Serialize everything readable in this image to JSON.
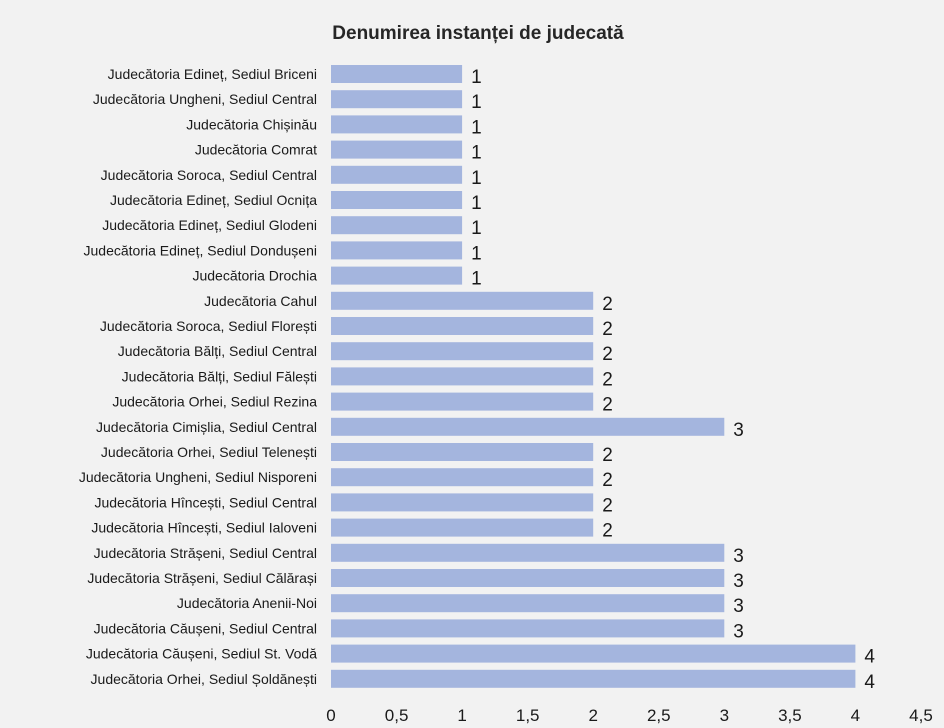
{
  "chart_data": {
    "type": "bar",
    "orientation": "horizontal",
    "title": "Denumirea instanței de judecată",
    "xlabel": "",
    "ylabel": "",
    "xlim": [
      0,
      4.5
    ],
    "x_ticks": [
      0,
      0.5,
      1,
      1.5,
      2,
      2.5,
      3,
      3.5,
      4,
      4.5
    ],
    "x_tick_labels": [
      "0",
      "0,5",
      "1",
      "1,5",
      "2",
      "2,5",
      "3",
      "3,5",
      "4",
      "4,5"
    ],
    "grid": false,
    "legend": "none",
    "bar_color": "#a4b5de",
    "background_color": "#f2f2f2",
    "categories": [
      "Judecătoria Edineț, Sediul Briceni",
      "Judecătoria Ungheni, Sediul Central",
      "Judecătoria Chișinău",
      "Judecătoria Comrat",
      "Judecătoria Soroca, Sediul Central",
      "Judecătoria Edineț, Sediul Ocnița",
      "Judecătoria Edineț, Sediul Glodeni",
      "Judecătoria Edineț, Sediul Dondușeni",
      "Judecătoria Drochia",
      "Judecătoria Cahul",
      "Judecătoria Soroca, Sediul Florești",
      "Judecătoria Bălți, Sediul Central",
      "Judecătoria Bălți, Sediul Fălești",
      "Judecătoria Orhei, Sediul Rezina",
      "Judecătoria Cimișlia, Sediul Central",
      "Judecătoria Orhei, Sediul Telenești",
      "Judecătoria Ungheni, Sediul Nisporeni",
      "Judecătoria Hîncești, Sediul Central",
      "Judecătoria Hîncești, Sediul Ialoveni",
      "Judecătoria Strășeni, Sediul Central",
      "Judecătoria Strășeni, Sediul Călărași",
      "Judecătoria Anenii-Noi",
      "Judecătoria Căușeni, Sediul Central",
      "Judecătoria Căușeni, Sediul St. Vodă",
      "Judecătoria Orhei, Sediul Șoldănești"
    ],
    "values": [
      1,
      1,
      1,
      1,
      1,
      1,
      1,
      1,
      1,
      2,
      2,
      2,
      2,
      2,
      3,
      2,
      2,
      2,
      2,
      3,
      3,
      3,
      3,
      4,
      4
    ],
    "data_labels": [
      "1",
      "1",
      "1",
      "1",
      "1",
      "1",
      "1",
      "1",
      "1",
      "2",
      "2",
      "2",
      "2",
      "2",
      "3",
      "2",
      "2",
      "2",
      "2",
      "3",
      "3",
      "3",
      "3",
      "4",
      "4"
    ]
  }
}
